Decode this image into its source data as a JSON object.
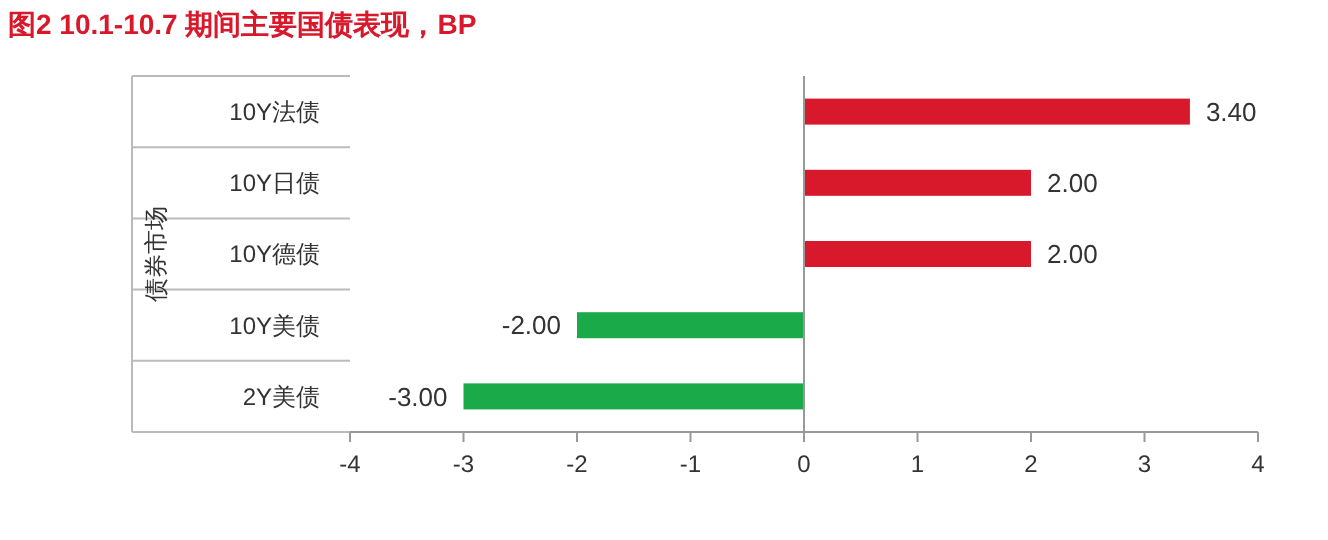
{
  "chart_data": {
    "type": "bar",
    "orientation": "horizontal",
    "title": "图2  10.1-10.7 期间主要国债表现，BP",
    "ylabel": "债券市场",
    "categories": [
      "10Y法债",
      "10Y日债",
      "10Y德债",
      "10Y美债",
      "2Y美债"
    ],
    "values": [
      3.4,
      2,
      2,
      -2,
      -3
    ],
    "colors": [
      "#d7192b",
      "#d7192b",
      "#d7192b",
      "#1aaa4a",
      "#1aaa4a"
    ],
    "value_labels": [
      "3.40",
      "2.00",
      "2.00",
      "-2.00",
      "-3.00"
    ],
    "xlim": [
      -4,
      4
    ],
    "xticks": [
      -4,
      -3,
      -2,
      -1,
      0,
      1,
      2,
      3,
      4
    ]
  }
}
